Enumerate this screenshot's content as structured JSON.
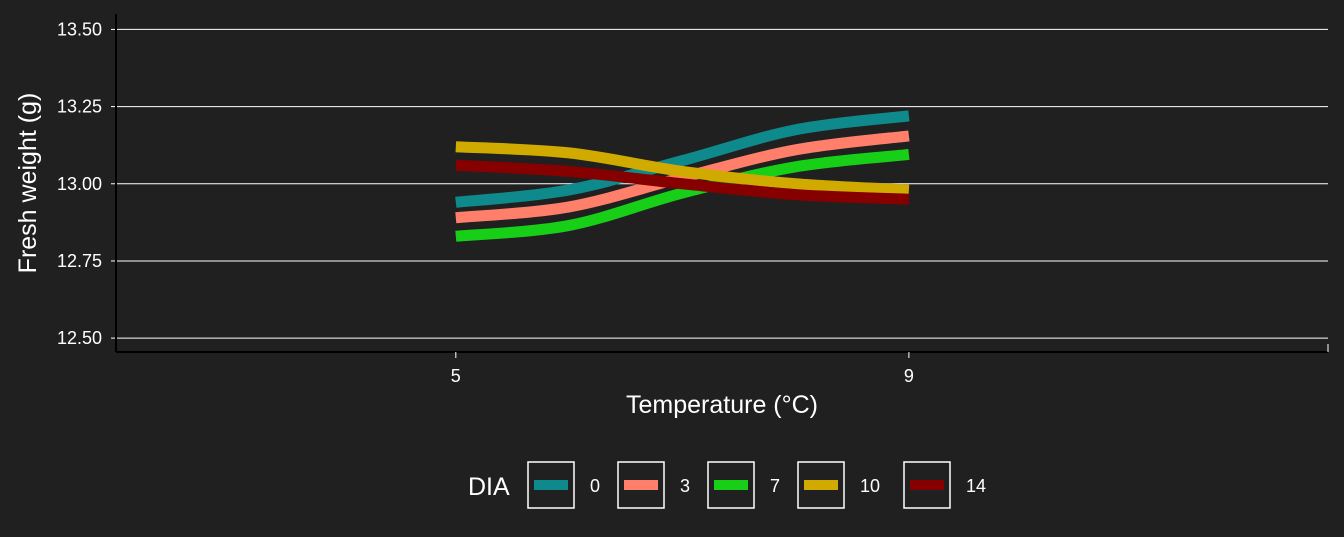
{
  "chart_data": {
    "type": "line",
    "xlabel": "Temperature (°C)",
    "ylabel": "Fresh weight (g)",
    "xlim": [
      2.0,
      12.7
    ],
    "ylim": [
      12.455,
      13.55
    ],
    "x_ticks": [
      5,
      9
    ],
    "y_ticks": [
      12.5,
      12.75,
      13.0,
      13.25,
      13.5
    ],
    "y_tick_labels": [
      "12.50",
      "12.75",
      "13.00",
      "13.25",
      "13.50"
    ],
    "grid": "horizontal",
    "legend": {
      "title": "DIA",
      "position": "bottom"
    },
    "x": [
      5,
      6,
      7,
      8,
      9
    ],
    "series": [
      {
        "name": "0",
        "color": "#0e8a8c",
        "values": [
          12.94,
          12.98,
          13.075,
          13.175,
          13.22
        ]
      },
      {
        "name": "3",
        "color": "#ff7f6b",
        "values": [
          12.89,
          12.925,
          13.02,
          13.11,
          13.155
        ]
      },
      {
        "name": "7",
        "color": "#18cf18",
        "values": [
          12.83,
          12.865,
          12.97,
          13.055,
          13.095
        ]
      },
      {
        "name": "10",
        "color": "#d1aa00",
        "values": [
          13.12,
          13.1,
          13.04,
          13.0,
          12.98
        ]
      },
      {
        "name": "14",
        "color": "#870000",
        "values": [
          13.06,
          13.04,
          13.0,
          12.965,
          12.95
        ]
      }
    ]
  },
  "colors": {
    "background": "#202020",
    "grid": "#ffffff",
    "text": "#ffffff"
  }
}
